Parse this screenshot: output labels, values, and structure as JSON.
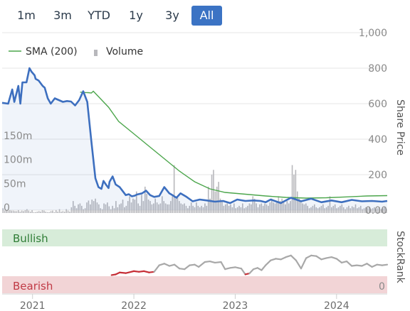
{
  "range_buttons": [
    {
      "label": "1m",
      "active": false
    },
    {
      "label": "3m",
      "active": false
    },
    {
      "label": "YTD",
      "active": false
    },
    {
      "label": "1y",
      "active": false
    },
    {
      "label": "3y",
      "active": false
    },
    {
      "label": "All",
      "active": true
    }
  ],
  "colors": {
    "price": "#3d6fbf",
    "sma": "#4ca64c",
    "volume": "#b8b8bc",
    "bullish_band": "#d7ecd9",
    "bearish_band": "#f2d4d6",
    "bullish_text": "#2f7d36",
    "bearish_text": "#c03a45",
    "stockrank_line": "#a8a8a8",
    "stockrank_bear": "#c62e36",
    "axis_text": "#8a8a8a",
    "grid": "#e6e6e6"
  },
  "chart_data": [
    {
      "type": "line",
      "ylabel": "Share Price",
      "y_ticks": [
        "1,000",
        "800",
        "600",
        "400",
        "200",
        "0.00"
      ],
      "ylim": [
        0,
        1000
      ],
      "x_ticks": [
        "2021",
        "2022",
        "2023",
        "2024"
      ],
      "xlim": [
        2020.7,
        2024.5
      ],
      "legend": [
        "SMA (200)",
        "Volume"
      ],
      "series": [
        {
          "name": "Price",
          "x": [
            2020.7,
            2020.76,
            2020.8,
            2020.82,
            2020.86,
            2020.88,
            2020.9,
            2020.94,
            2020.97,
            2020.99,
            2021.02,
            2021.03,
            2021.06,
            2021.1,
            2021.12,
            2021.15,
            2021.18,
            2021.22,
            2021.26,
            2021.3,
            2021.34,
            2021.38,
            2021.42,
            2021.46,
            2021.5,
            2021.54,
            2021.58,
            2021.62,
            2021.65,
            2021.68,
            2021.7,
            2021.73,
            2021.75,
            2021.76,
            2021.79,
            2021.82,
            2021.86,
            2021.88,
            2021.92,
            2021.95,
            2021.98,
            2022.01,
            2022.03,
            2022.08,
            2022.12,
            2022.16,
            2022.2,
            2022.25,
            2022.3,
            2022.35,
            2022.38,
            2022.42,
            2022.46,
            2022.52,
            2022.58,
            2022.65,
            2022.72,
            2022.8,
            2022.88,
            2022.95,
            2023.02,
            2023.1,
            2023.18,
            2023.25,
            2023.3,
            2023.35,
            2023.45,
            2023.55,
            2023.65,
            2023.75,
            2023.85,
            2023.95,
            2024.05,
            2024.15,
            2024.25,
            2024.35,
            2024.45,
            2024.5
          ],
          "values": [
            605,
            600,
            680,
            610,
            700,
            600,
            720,
            720,
            800,
            780,
            760,
            740,
            730,
            700,
            690,
            630,
            600,
            630,
            620,
            610,
            615,
            612,
            590,
            620,
            670,
            610,
            390,
            180,
            130,
            120,
            165,
            140,
            125,
            160,
            190,
            145,
            130,
            115,
            85,
            90,
            78,
            82,
            88,
            95,
            110,
            85,
            75,
            80,
            130,
            95,
            85,
            70,
            95,
            75,
            50,
            60,
            55,
            48,
            52,
            40,
            60,
            52,
            55,
            52,
            45,
            60,
            40,
            70,
            50,
            65,
            45,
            55,
            45,
            58,
            50,
            52,
            48,
            52
          ]
        },
        {
          "name": "SMA (200)",
          "x": [
            2021.47,
            2021.52,
            2021.55,
            2021.58,
            2021.6,
            2021.65,
            2021.75,
            2021.85,
            2022.0,
            2022.15,
            2022.3,
            2022.45,
            2022.6,
            2022.75,
            2022.9,
            2023.1,
            2023.3,
            2023.5,
            2023.7,
            2023.9,
            2024.1,
            2024.3,
            2024.5
          ],
          "values": [
            665,
            663,
            662,
            660,
            670,
            640,
            580,
            500,
            430,
            360,
            290,
            220,
            160,
            120,
            100,
            90,
            80,
            72,
            68,
            70,
            75,
            80,
            82
          ]
        }
      ]
    },
    {
      "type": "bar",
      "ylabel": "Volume",
      "y_ticks": [
        "150m",
        "100m",
        "50m",
        "0"
      ],
      "ylim": [
        0,
        200
      ],
      "xlim": [
        2020.7,
        2024.5
      ],
      "values_m": [
        10,
        5,
        5,
        5,
        6,
        5,
        5,
        4,
        4,
        6,
        3,
        5,
        4,
        6,
        8,
        5,
        3,
        6,
        2,
        2,
        3,
        4,
        3,
        6,
        5,
        3,
        2,
        2,
        4,
        5,
        2,
        6,
        3,
        8,
        3,
        4,
        3,
        8,
        5,
        3,
        12,
        25,
        15,
        10,
        18,
        20,
        15,
        8,
        10,
        22,
        26,
        18,
        28,
        25,
        30,
        22,
        18,
        10,
        8,
        20,
        18,
        22,
        14,
        8,
        15,
        10,
        25,
        12,
        18,
        20,
        28,
        12,
        15,
        25,
        35,
        22,
        30,
        28,
        45,
        20,
        15,
        38,
        25,
        55,
        40,
        28,
        25,
        18,
        20,
        30,
        22,
        18,
        20,
        35,
        25,
        20,
        18,
        18,
        25,
        35,
        100,
        30,
        32,
        25,
        20,
        18,
        20,
        15,
        10,
        15,
        22,
        15,
        12,
        22,
        15,
        12,
        15,
        12,
        20,
        15,
        55,
        30,
        80,
        90,
        45,
        55,
        65,
        30,
        25,
        15,
        18,
        20,
        15,
        18,
        12,
        20,
        10,
        12,
        15,
        12,
        20,
        10,
        12,
        15,
        20,
        18,
        35,
        30,
        20,
        12,
        18,
        20,
        15,
        20,
        18,
        15,
        22,
        30,
        22,
        20,
        25,
        35,
        25,
        30,
        22,
        18,
        25,
        20,
        25,
        100,
        80,
        90,
        45,
        30,
        25,
        20,
        18,
        20,
        15,
        10,
        12,
        15,
        18,
        12,
        10,
        12,
        15,
        18,
        10,
        12,
        15,
        35,
        12,
        15,
        18,
        10,
        12,
        15,
        18,
        12,
        8,
        12,
        15,
        10,
        14,
        12,
        18,
        10,
        12,
        15,
        8,
        10,
        12,
        10,
        12,
        8,
        10,
        12,
        8,
        10,
        12,
        8,
        10,
        12,
        8
      ]
    },
    {
      "type": "line",
      "ylabel": "StockRank",
      "band_labels": [
        "Bullish",
        "Bearish"
      ],
      "y_tick": "0",
      "ylim": [
        0,
        100
      ],
      "xlim": [
        2020.7,
        2024.5
      ],
      "series": [
        {
          "name": "StockRank",
          "x": [
            2021.78,
            2021.82,
            2021.86,
            2021.92,
            2022.0,
            2022.05,
            2022.1,
            2022.15,
            2022.2,
            2022.25,
            2022.3,
            2022.35,
            2022.4,
            2022.45,
            2022.5,
            2022.55,
            2022.6,
            2022.64,
            2022.7,
            2022.75,
            2022.8,
            2022.86,
            2022.9,
            2022.95,
            2023.0,
            2023.03,
            2023.06,
            2023.1,
            2023.14,
            2023.18,
            2023.22,
            2023.26,
            2023.3,
            2023.35,
            2023.4,
            2023.45,
            2023.5,
            2023.55,
            2023.6,
            2023.65,
            2023.7,
            2023.75,
            2023.8,
            2023.85,
            2023.9,
            2023.95,
            2024.0,
            2024.05,
            2024.1,
            2024.15,
            2024.2,
            2024.25,
            2024.3,
            2024.35,
            2024.4,
            2024.45,
            2024.5
          ],
          "values": [
            10,
            12,
            18,
            16,
            22,
            20,
            22,
            18,
            20,
            40,
            45,
            38,
            42,
            30,
            28,
            40,
            42,
            35,
            50,
            52,
            48,
            50,
            28,
            32,
            34,
            32,
            30,
            12,
            15,
            28,
            32,
            25,
            40,
            55,
            60,
            58,
            65,
            70,
            55,
            30,
            62,
            70,
            68,
            58,
            62,
            65,
            60,
            48,
            52,
            38,
            40,
            38,
            45,
            35,
            42,
            40,
            42
          ]
        }
      ]
    }
  ]
}
